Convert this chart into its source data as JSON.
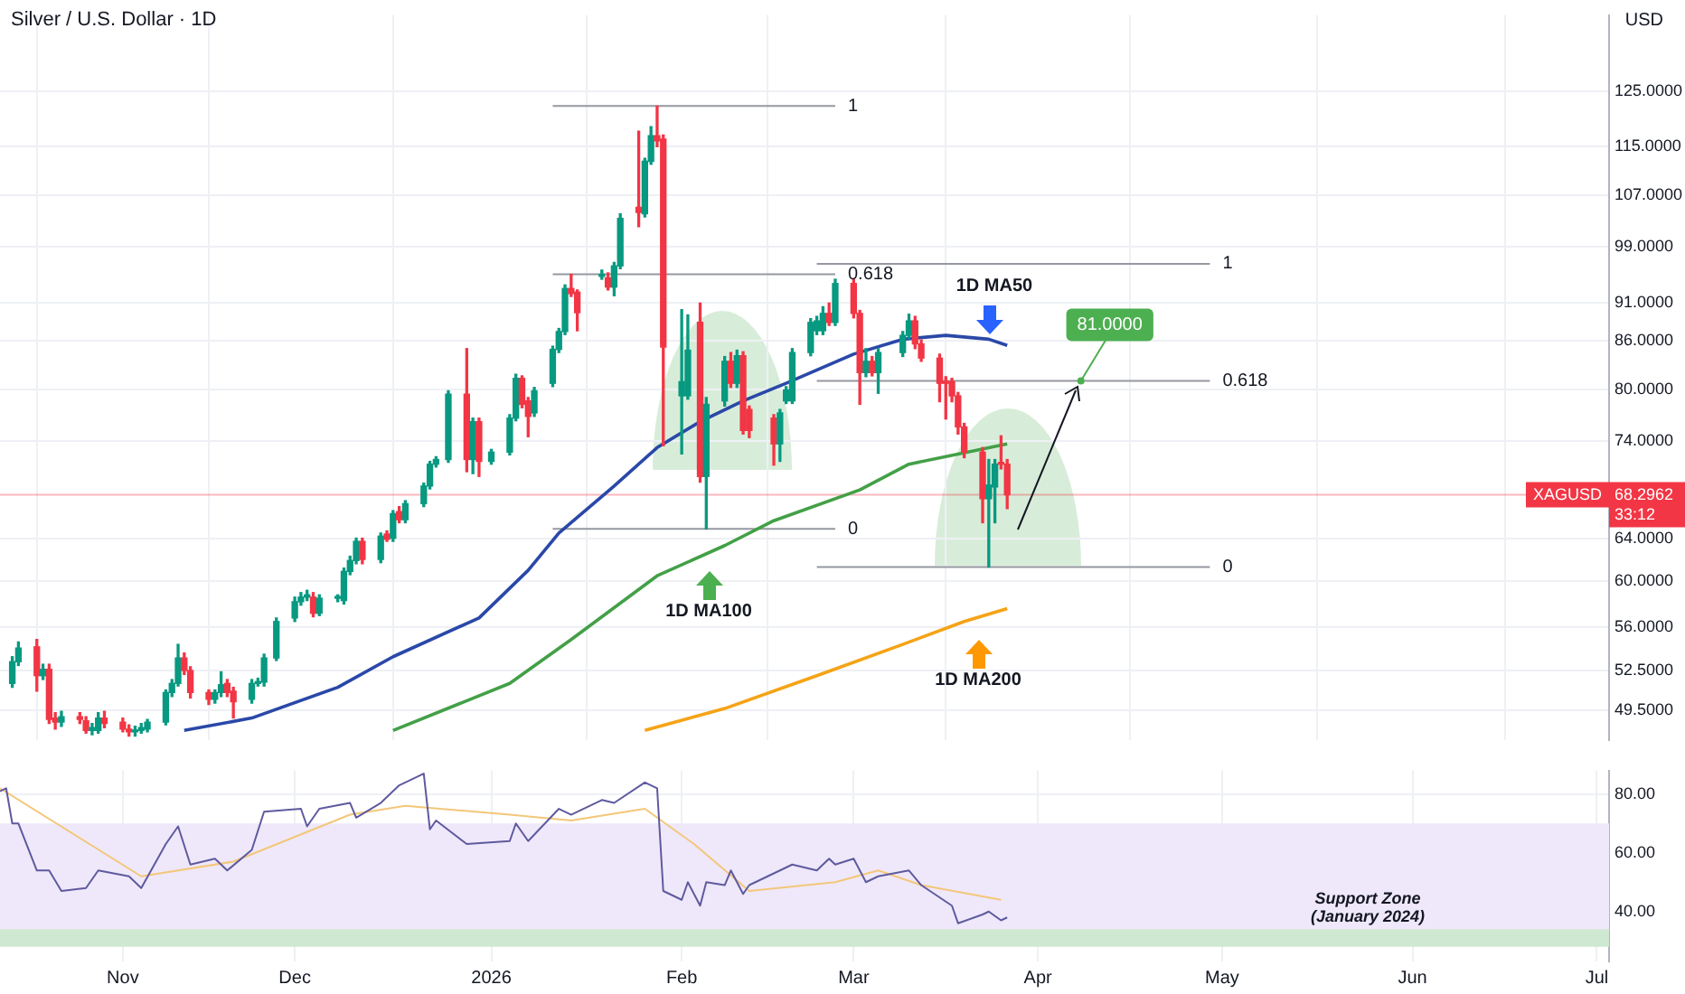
{
  "chart_data": [
    {
      "type": "candlestick",
      "title": "Silver / U.S. Dollar · 1D",
      "ylabel": "USD",
      "log": true,
      "grid": true,
      "tick_labels": "y",
      "xlim": [
        "2025-10-14",
        "2026-07-03"
      ],
      "xticks": [
        {
          "value": "2025-11-03",
          "label": null
        },
        {
          "value": "2025-12-01",
          "label": null
        },
        {
          "value": "2026-01-02",
          "label": null
        },
        {
          "value": "2026-02-02",
          "label": null
        },
        {
          "value": "2026-03-02",
          "label": null
        },
        {
          "value": "2026-04-01",
          "label": null
        },
        {
          "value": "2026-05-01",
          "label": null
        },
        {
          "value": "2026-06-01",
          "label": null
        },
        {
          "value": "2026-07-01",
          "label": null
        }
      ],
      "ylim": [
        47.3,
        140
      ],
      "yticks": [
        {
          "value": 49.5,
          "label": "49.5000"
        },
        {
          "value": 52.5,
          "label": "52.5000"
        },
        {
          "value": 56,
          "label": "56.0000"
        },
        {
          "value": 60,
          "label": "60.0000"
        },
        {
          "value": 64,
          "label": "64.0000"
        },
        {
          "value": 74,
          "label": "74.0000"
        },
        {
          "value": 80,
          "label": "80.0000"
        },
        {
          "value": 86,
          "label": "86.0000"
        },
        {
          "value": 91,
          "label": "91.0000"
        },
        {
          "value": 99,
          "label": "99.0000"
        },
        {
          "value": 107,
          "label": "107.0000"
        },
        {
          "value": 115,
          "label": "115.0000"
        },
        {
          "value": 125,
          "label": "125.0000"
        }
      ],
      "x": [
        "2025-10-16",
        "2025-10-17",
        "2025-10-20",
        "2025-10-21",
        "2025-10-22",
        "2025-10-23",
        "2025-10-24",
        "2025-10-27",
        "2025-10-28",
        "2025-10-29",
        "2025-10-30",
        "2025-10-31",
        "2025-11-03",
        "2025-11-04",
        "2025-11-05",
        "2025-11-06",
        "2025-11-07",
        "2025-11-10",
        "2025-11-11",
        "2025-11-12",
        "2025-11-13",
        "2025-11-14",
        "2025-11-17",
        "2025-11-18",
        "2025-11-19",
        "2025-11-20",
        "2025-11-21",
        "2025-11-24",
        "2025-11-25",
        "2025-11-26",
        "2025-11-28",
        "2025-12-01",
        "2025-12-02",
        "2025-12-03",
        "2025-12-04",
        "2025-12-05",
        "2025-12-08",
        "2025-12-09",
        "2025-12-10",
        "2025-12-11",
        "2025-12-12",
        "2025-12-15",
        "2025-12-16",
        "2025-12-17",
        "2025-12-18",
        "2025-12-19",
        "2025-12-22",
        "2025-12-23",
        "2025-12-24",
        "2025-12-26",
        "2025-12-29",
        "2025-12-30",
        "2025-12-31",
        "2026-01-02",
        "2026-01-05",
        "2026-01-06",
        "2026-01-07",
        "2026-01-08",
        "2026-01-09",
        "2026-01-12",
        "2026-01-13",
        "2026-01-14",
        "2026-01-15",
        "2026-01-16",
        "2026-01-20",
        "2026-01-21",
        "2026-01-22",
        "2026-01-23",
        "2026-01-26",
        "2026-01-27",
        "2026-01-28",
        "2026-01-29",
        "2026-01-30",
        "2026-02-02",
        "2026-02-03",
        "2026-02-05",
        "2026-02-06",
        "2026-02-09",
        "2026-02-10",
        "2026-02-11",
        "2026-02-12",
        "2026-02-13",
        "2026-02-17",
        "2026-02-18",
        "2026-02-19",
        "2026-02-20",
        "2026-02-23",
        "2026-02-24",
        "2026-02-25",
        "2026-02-26",
        "2026-02-27",
        "2026-03-02",
        "2026-03-03",
        "2026-03-04",
        "2026-03-05",
        "2026-03-06",
        "2026-03-10",
        "2026-03-11",
        "2026-03-12",
        "2026-03-13",
        "2026-03-16",
        "2026-03-17",
        "2026-03-18",
        "2026-03-19",
        "2026-03-20",
        "2026-03-23",
        "2026-03-24",
        "2026-03-25",
        "2026-03-26",
        "2026-03-27"
      ],
      "ohlc": [
        [
          51.5,
          53.6,
          51.2,
          53.2
        ],
        [
          53.2,
          54.8,
          52.9,
          54.3
        ],
        [
          54.4,
          55.0,
          50.9,
          52.1
        ],
        [
          52.1,
          53.0,
          51.8,
          52.6
        ],
        [
          52.6,
          53.0,
          48.5,
          48.8
        ],
        [
          48.9,
          49.3,
          48.1,
          48.6
        ],
        [
          48.6,
          49.4,
          48.3,
          49.0
        ],
        [
          49.0,
          49.3,
          48.5,
          48.8
        ],
        [
          48.7,
          49.0,
          47.8,
          48.0
        ],
        [
          48.0,
          48.5,
          47.7,
          48.2
        ],
        [
          48.0,
          49.3,
          47.8,
          48.9
        ],
        [
          48.9,
          49.4,
          48.2,
          48.5
        ],
        [
          48.6,
          48.9,
          47.9,
          48.1
        ],
        [
          48.1,
          48.4,
          47.6,
          47.9
        ],
        [
          47.9,
          48.3,
          47.6,
          48.0
        ],
        [
          48.0,
          48.5,
          47.8,
          48.2
        ],
        [
          48.1,
          48.8,
          47.9,
          48.6
        ],
        [
          48.6,
          51.0,
          48.4,
          50.8
        ],
        [
          50.8,
          51.8,
          50.5,
          51.5
        ],
        [
          51.5,
          54.6,
          51.3,
          53.5
        ],
        [
          53.5,
          53.9,
          52.2,
          52.5
        ],
        [
          52.5,
          52.8,
          50.4,
          50.8
        ],
        [
          50.8,
          51.0,
          49.9,
          50.3
        ],
        [
          50.3,
          51.0,
          50.0,
          50.8
        ],
        [
          50.8,
          52.4,
          50.5,
          51.4
        ],
        [
          51.5,
          51.8,
          50.5,
          50.8
        ],
        [
          50.9,
          51.2,
          48.9,
          50.1
        ],
        [
          50.3,
          51.8,
          50.0,
          51.5
        ],
        [
          51.5,
          51.9,
          51.3,
          51.6
        ],
        [
          51.6,
          53.8,
          51.3,
          53.5
        ],
        [
          53.5,
          56.8,
          53.3,
          56.5
        ],
        [
          56.8,
          58.6,
          56.5,
          58.2
        ],
        [
          58.2,
          59.0,
          57.9,
          58.6
        ],
        [
          58.6,
          59.2,
          58.3,
          58.8
        ],
        [
          58.6,
          59.0,
          56.9,
          57.2
        ],
        [
          57.2,
          58.8,
          57.0,
          58.5
        ],
        [
          58.5,
          58.8,
          58.2,
          58.6
        ],
        [
          58.3,
          61.2,
          58.0,
          60.9
        ],
        [
          60.9,
          62.3,
          60.6,
          61.9
        ],
        [
          61.9,
          64.0,
          61.6,
          63.7
        ],
        [
          63.7,
          64.0,
          61.6,
          62.0
        ],
        [
          62.0,
          64.5,
          61.7,
          64.2
        ],
        [
          64.4,
          64.7,
          63.7,
          63.9
        ],
        [
          64.0,
          66.7,
          63.7,
          66.4
        ],
        [
          66.6,
          67.1,
          65.5,
          65.8
        ],
        [
          65.8,
          67.7,
          65.5,
          67.4
        ],
        [
          67.4,
          69.5,
          67.1,
          69.2
        ],
        [
          69.2,
          71.8,
          68.9,
          71.5
        ],
        [
          71.5,
          72.3,
          71.2,
          72.0
        ],
        [
          72.0,
          79.8,
          71.7,
          79.4
        ],
        [
          79.4,
          85.0,
          70.7,
          72.0
        ],
        [
          72.0,
          76.6,
          70.5,
          76.2
        ],
        [
          76.2,
          76.6,
          70.2,
          71.8
        ],
        [
          71.8,
          73.1,
          71.5,
          72.8
        ],
        [
          72.8,
          77.0,
          72.5,
          76.6
        ],
        [
          76.6,
          81.8,
          76.3,
          81.3
        ],
        [
          81.3,
          81.6,
          77.8,
          78.2
        ],
        [
          78.6,
          79.0,
          74.5,
          76.8
        ],
        [
          77.2,
          80.2,
          76.8,
          79.8
        ],
        [
          80.7,
          85.3,
          80.3,
          84.9
        ],
        [
          84.9,
          87.6,
          84.5,
          87.2
        ],
        [
          87.2,
          93.5,
          86.8,
          93.0
        ],
        [
          93.0,
          95.0,
          91.9,
          92.3
        ],
        [
          92.5,
          92.8,
          87.3,
          89.7
        ],
        [
          94.7,
          95.6,
          94.3,
          95.0
        ],
        [
          94.5,
          95.2,
          92.8,
          93.2
        ],
        [
          93.2,
          96.7,
          92.0,
          96.2
        ],
        [
          96.2,
          104.0,
          95.8,
          103.3
        ],
        [
          105.0,
          117.7,
          102.0,
          104.2
        ],
        [
          104.0,
          113.0,
          103.5,
          112.5
        ],
        [
          112.5,
          118.5,
          112.0,
          116.9
        ],
        [
          116.9,
          122.2,
          115.0,
          116.0
        ],
        [
          116.3,
          117.0,
          73.5,
          85.2
        ],
        [
          79.2,
          90.1,
          72.6,
          80.9
        ],
        [
          79.2,
          89.4,
          78.8,
          84.8
        ],
        [
          88.4,
          91.0,
          69.6,
          70.2
        ],
        [
          70.2,
          79.0,
          64.9,
          78.2
        ],
        [
          78.6,
          84.0,
          78.0,
          83.4
        ],
        [
          83.4,
          84.5,
          80.2,
          80.7
        ],
        [
          80.7,
          84.8,
          80.2,
          84.1
        ],
        [
          84.1,
          84.6,
          74.8,
          75.2
        ],
        [
          77.6,
          78.0,
          74.4,
          75.2
        ],
        [
          76.6,
          77.0,
          71.4,
          73.7
        ],
        [
          73.7,
          77.6,
          71.8,
          77.2
        ],
        [
          78.6,
          80.3,
          78.3,
          79.9
        ],
        [
          78.6,
          85.0,
          78.3,
          84.5
        ],
        [
          84.5,
          88.9,
          84.1,
          88.4
        ],
        [
          87.3,
          89.2,
          86.8,
          88.6
        ],
        [
          87.3,
          90.5,
          86.8,
          89.6
        ],
        [
          89.6,
          91.0,
          88.0,
          88.4
        ],
        [
          88.4,
          94.3,
          88.0,
          93.7
        ],
        [
          93.7,
          94.3,
          89.0,
          89.6
        ],
        [
          89.6,
          90.0,
          78.2,
          82.0
        ],
        [
          82.0,
          85.0,
          81.5,
          83.4
        ],
        [
          83.4,
          84.0,
          81.6,
          82.0
        ],
        [
          82.0,
          85.0,
          79.5,
          84.5
        ],
        [
          84.5,
          87.2,
          84.0,
          86.7
        ],
        [
          86.7,
          89.5,
          86.3,
          88.6
        ],
        [
          88.6,
          89.2,
          85.0,
          85.6
        ],
        [
          85.6,
          86.1,
          83.4,
          83.8
        ],
        [
          83.8,
          84.3,
          78.5,
          80.7
        ],
        [
          80.9,
          81.5,
          76.5,
          80.7
        ],
        [
          80.9,
          81.3,
          78.5,
          79.2
        ],
        [
          79.2,
          79.6,
          74.8,
          75.6
        ],
        [
          75.6,
          76.0,
          72.2,
          72.8
        ],
        [
          72.8,
          73.3,
          65.5,
          67.9
        ],
        [
          67.9,
          72.0,
          61.3,
          69.3
        ],
        [
          69.1,
          72.0,
          65.5,
          71.5
        ],
        [
          71.6,
          74.6,
          71.0,
          71.5
        ],
        [
          71.5,
          72.0,
          66.9,
          68.2962
        ]
      ],
      "series": [
        {
          "type": "line",
          "name": "1D MA50",
          "color": "#2a48a8",
          "x": [
            "2025-11-13",
            "2025-11-24",
            "2025-12-08",
            "2025-12-17",
            "2025-12-31",
            "2026-01-08",
            "2026-01-13",
            "2026-01-22",
            "2026-01-29",
            "2026-02-05",
            "2026-02-12",
            "2026-02-19",
            "2026-03-02",
            "2026-03-10",
            "2026-03-17",
            "2026-03-24",
            "2026-03-27"
          ],
          "values": [
            48.0,
            48.9,
            51.2,
            53.6,
            56.8,
            61.0,
            64.5,
            69.2,
            73.3,
            76.2,
            78.6,
            80.7,
            84.3,
            86.2,
            86.7,
            86.2,
            85.4
          ]
        },
        {
          "type": "line",
          "name": "1D MA100",
          "color": "#43a047",
          "x": [
            "2025-12-17",
            "2026-01-05",
            "2026-01-15",
            "2026-01-29",
            "2026-02-09",
            "2026-02-17",
            "2026-03-03",
            "2026-03-11",
            "2026-03-27"
          ],
          "values": [
            48.0,
            51.5,
            55.0,
            60.5,
            63.3,
            65.7,
            68.8,
            71.5,
            73.7
          ]
        },
        {
          "type": "line",
          "name": "1D MA200",
          "color": "#f5a316",
          "x": [
            "2026-01-27",
            "2026-02-09",
            "2026-02-24",
            "2026-03-10",
            "2026-03-20",
            "2026-03-27"
          ],
          "values": [
            48.0,
            49.6,
            52.1,
            54.6,
            56.5,
            57.6
          ]
        },
        {
          "type": "line",
          "color": "#9598a1",
          "x": [
            "2026-01-12",
            "2026-02-27"
          ],
          "values": [
            122.2,
            122.2
          ]
        },
        {
          "type": "line",
          "color": "#9598a1",
          "x": [
            "2026-01-12",
            "2026-02-27"
          ],
          "values": [
            95,
            95
          ]
        },
        {
          "type": "line",
          "color": "#9598a1",
          "x": [
            "2026-01-12",
            "2026-02-27"
          ],
          "values": [
            64.9,
            64.9
          ]
        },
        {
          "type": "line",
          "color": "#9598a1",
          "x": [
            "2026-02-24",
            "2026-04-29"
          ],
          "values": [
            96.5,
            96.5
          ]
        },
        {
          "type": "line",
          "color": "#9598a1",
          "x": [
            "2026-02-24",
            "2026-04-29"
          ],
          "values": [
            81,
            81
          ]
        },
        {
          "type": "line",
          "color": "#9598a1",
          "x": [
            "2026-02-24",
            "2026-04-29"
          ],
          "values": [
            61.3,
            61.3
          ]
        }
      ],
      "ref_lines": [
        {
          "axis": "y",
          "value": 68.2962,
          "label": "XAGUSD",
          "color": "#f23645"
        }
      ],
      "annotations": [
        {
          "text": "1",
          "x": "2026-02-27",
          "y": 122.2
        },
        {
          "text": "0.618",
          "x": "2026-02-27",
          "y": 95
        },
        {
          "text": "0",
          "x": "2026-02-27",
          "y": 64.9
        },
        {
          "text": "1",
          "x": "2026-04-29",
          "y": 96.5
        },
        {
          "text": "0.618",
          "x": "2026-04-29",
          "y": 81
        },
        {
          "text": "0",
          "x": "2026-04-29",
          "y": 61.3
        },
        {
          "text": "81.0000",
          "x": "2026-04-08",
          "y": 81
        },
        "68.2962",
        "33:12"
      ]
    },
    {
      "type": "line",
      "grid": true,
      "xlim": [
        "2025-10-14",
        "2026-07-03"
      ],
      "xticks": [
        {
          "value": "2025-11-03",
          "label": "Nov"
        },
        {
          "value": "2025-12-01",
          "label": "Dec"
        },
        {
          "value": "2026-01-02",
          "label": "2026"
        },
        {
          "value": "2026-02-02",
          "label": "Feb"
        },
        {
          "value": "2026-03-02",
          "label": "Mar"
        },
        {
          "value": "2026-04-01",
          "label": "Apr"
        },
        {
          "value": "2026-05-01",
          "label": "May"
        },
        {
          "value": "2026-06-01",
          "label": "Jun"
        },
        {
          "value": "2026-07-01",
          "label": "Jul"
        }
      ],
      "ylim": [
        23,
        88
      ],
      "yticks": [
        {
          "value": 40,
          "label": "40.00"
        },
        {
          "value": 60,
          "label": "60.00"
        },
        {
          "value": 80,
          "label": "80.00"
        }
      ],
      "bands": [
        {
          "axis": "y",
          "from": 30,
          "to": 70,
          "color": "#efe8fa"
        },
        {
          "axis": "y",
          "from": 28,
          "to": 34,
          "label": "Support Zone (January 2024)",
          "color": "#cfe8d2"
        }
      ],
      "series": [
        {
          "type": "line",
          "color": "#5e5a9e",
          "x": [
            "2025-10-14",
            "2025-10-15",
            "2025-10-16",
            "2025-10-17",
            "2025-10-20",
            "2025-10-22",
            "2025-10-24",
            "2025-10-28",
            "2025-10-30",
            "2025-11-04",
            "2025-11-06",
            "2025-11-10",
            "2025-11-12",
            "2025-11-14",
            "2025-11-18",
            "2025-11-20",
            "2025-11-24",
            "2025-11-26",
            "2025-12-02",
            "2025-12-03",
            "2025-12-05",
            "2025-12-10",
            "2025-12-11",
            "2025-12-15",
            "2025-12-17",
            "2025-12-18",
            "2025-12-22",
            "2025-12-23",
            "2025-12-24",
            "2025-12-29",
            "2026-01-05",
            "2026-01-06",
            "2026-01-08",
            "2026-01-13",
            "2026-01-15",
            "2026-01-20",
            "2026-01-22",
            "2026-01-27",
            "2026-01-29",
            "2026-01-30",
            "2026-02-02",
            "2026-02-03",
            "2026-02-05",
            "2026-02-06",
            "2026-02-09",
            "2026-02-10",
            "2026-02-12",
            "2026-02-13",
            "2026-02-20",
            "2026-02-24",
            "2026-02-26",
            "2026-02-27",
            "2026-03-02",
            "2026-03-04",
            "2026-03-06",
            "2026-03-11",
            "2026-03-13",
            "2026-03-18",
            "2026-03-19",
            "2026-03-23",
            "2026-03-24",
            "2026-03-26",
            "2026-03-27"
          ],
          "values": [
            81,
            82,
            70,
            70,
            54,
            54,
            47,
            48,
            54,
            52,
            48,
            63,
            69,
            56,
            58,
            54,
            61,
            74,
            75,
            69,
            75,
            77,
            72,
            77,
            81,
            83,
            87,
            68,
            71,
            63,
            64,
            70,
            64,
            75,
            73,
            78,
            77,
            84,
            82,
            47,
            44,
            50,
            42,
            50,
            49,
            54,
            46,
            49,
            56,
            54,
            58,
            56,
            58,
            50,
            52,
            54,
            49,
            42,
            36,
            39,
            40,
            37,
            38
          ]
        },
        {
          "type": "line",
          "color": "#f3c77a",
          "x": [
            "2025-10-14",
            "2025-11-06",
            "2025-11-21",
            "2025-12-10",
            "2025-12-19",
            "2026-01-05",
            "2026-01-15",
            "2026-01-27",
            "2026-02-04",
            "2026-02-13",
            "2026-02-27",
            "2026-03-06",
            "2026-03-13",
            "2026-03-26"
          ],
          "values": [
            82,
            52,
            57,
            73,
            76,
            73,
            71,
            75,
            63,
            47,
            50,
            54,
            49,
            44
          ]
        }
      ]
    }
  ]
}
